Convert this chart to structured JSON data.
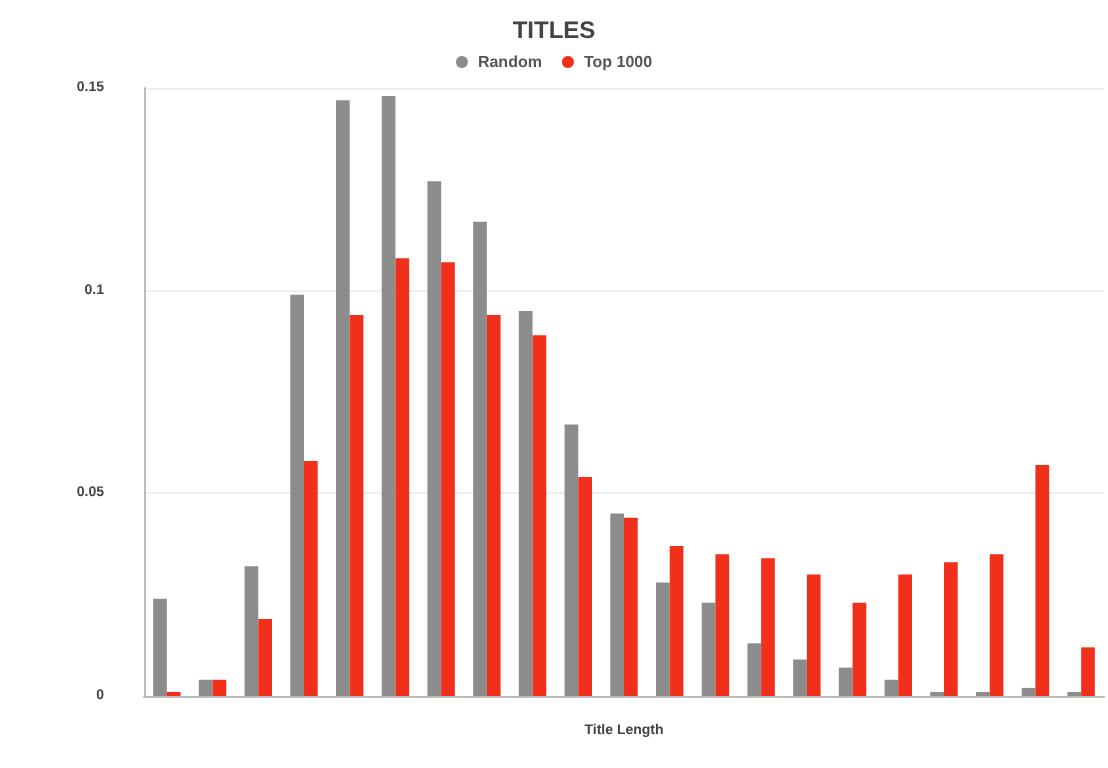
{
  "chart_data": {
    "type": "bar",
    "title": "TITLES",
    "xlabel": "Title Length",
    "categories": [
      null,
      null,
      null,
      null,
      null,
      null,
      null,
      null,
      null,
      null,
      null,
      null,
      null,
      null,
      null,
      null,
      null,
      null,
      null,
      null,
      null
    ],
    "series": [
      {
        "name": "Random",
        "color": "#8c8c8c",
        "values": [
          0.024,
          0.004,
          0.032,
          0.099,
          0.147,
          0.148,
          0.127,
          0.117,
          0.095,
          0.067,
          0.045,
          0.028,
          0.023,
          0.013,
          0.009,
          0.007,
          0.004,
          0.001,
          0.001,
          0.002,
          0.001
        ]
      },
      {
        "name": "Top 1000",
        "color": "#f0301a",
        "values": [
          0.001,
          0.004,
          0.019,
          0.058,
          0.094,
          0.108,
          0.107,
          0.094,
          0.089,
          0.054,
          0.044,
          0.037,
          0.035,
          0.034,
          0.03,
          0.023,
          0.03,
          0.033,
          0.035,
          0.057,
          0.012
        ]
      }
    ],
    "ylim": [
      0,
      0.15
    ],
    "yticks": [
      0,
      0.05,
      0.1,
      0.15
    ],
    "grid": "y",
    "legend": "top"
  }
}
